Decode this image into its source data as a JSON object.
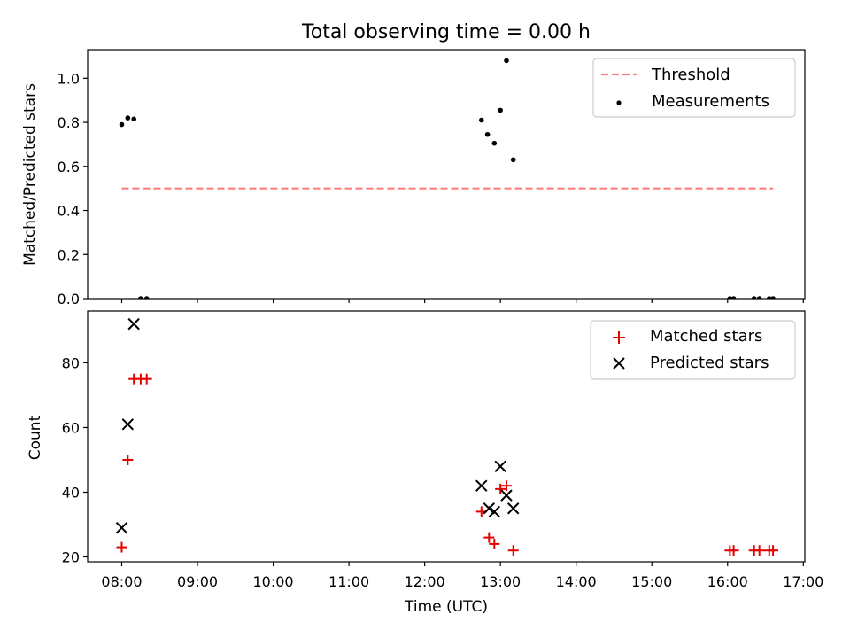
{
  "title": "Total observing time = 0.00 h",
  "chart_data": [
    {
      "type": "scatter",
      "ylabel": "Matched/Predicted stars",
      "xlabel": "",
      "xlim": [
        7.55,
        17.02
      ],
      "ylim": [
        0.0,
        1.13
      ],
      "yticks": [
        0.0,
        0.2,
        0.4,
        0.6,
        0.8,
        1.0
      ],
      "yticklabels": [
        "0.0",
        "0.2",
        "0.4",
        "0.6",
        "0.8",
        "1.0"
      ],
      "grid": false,
      "legend_position": "top-right",
      "threshold": {
        "name": "Threshold",
        "color": "#ff7f7f",
        "value": 0.5,
        "x_range": [
          8.0,
          16.6
        ]
      },
      "series": [
        {
          "name": "Measurements",
          "color": "#000000",
          "x": [
            8.0,
            8.08,
            8.16,
            8.25,
            8.33,
            12.75,
            12.83,
            12.92,
            13.0,
            13.08,
            13.17,
            16.03,
            16.08,
            16.35,
            16.42,
            16.55,
            16.6
          ],
          "y": [
            0.79,
            0.82,
            0.815,
            0.0,
            0.0,
            0.81,
            0.745,
            0.705,
            0.855,
            1.08,
            0.63,
            0.0,
            0.0,
            0.0,
            0.0,
            0.0,
            0.0
          ]
        }
      ]
    },
    {
      "type": "scatter",
      "ylabel": "Count",
      "xlabel": "Time (UTC)",
      "xlim": [
        7.55,
        17.02
      ],
      "ylim": [
        18.5,
        96.0
      ],
      "yticks": [
        20,
        40,
        60,
        80
      ],
      "yticklabels": [
        "20",
        "40",
        "60",
        "80"
      ],
      "xticks": [
        8,
        9,
        10,
        11,
        12,
        13,
        14,
        15,
        16,
        17
      ],
      "xticklabels": [
        "08:00",
        "09:00",
        "10:00",
        "11:00",
        "12:00",
        "13:00",
        "14:00",
        "15:00",
        "16:00",
        "17:00"
      ],
      "grid": false,
      "legend_position": "top-right",
      "series": [
        {
          "name": "Matched stars",
          "marker": "plus",
          "color": "#e60000",
          "x": [
            8.0,
            8.08,
            8.16,
            8.25,
            8.33,
            12.75,
            12.85,
            12.92,
            13.0,
            13.08,
            13.17,
            16.03,
            16.08,
            16.35,
            16.42,
            16.55,
            16.6
          ],
          "y": [
            23,
            50,
            75,
            75,
            75,
            34,
            26,
            24,
            41,
            42,
            22,
            22,
            22,
            22,
            22,
            22,
            22
          ]
        },
        {
          "name": "Predicted stars",
          "marker": "x",
          "color": "#000000",
          "x": [
            8.0,
            8.08,
            8.16,
            12.75,
            12.85,
            12.92,
            13.0,
            13.08,
            13.17
          ],
          "y": [
            29,
            61,
            92,
            42,
            35,
            34,
            48,
            39,
            35
          ]
        }
      ]
    }
  ]
}
